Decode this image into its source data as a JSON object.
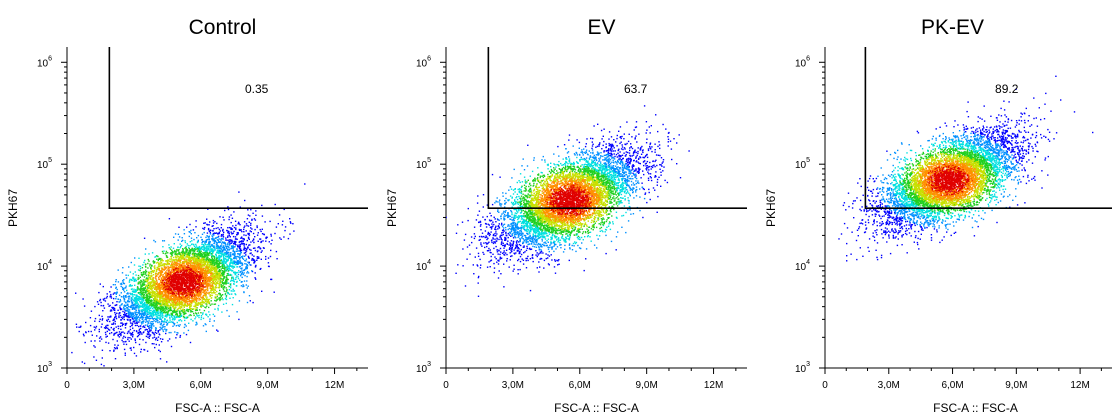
{
  "chart_data": [
    {
      "type": "scatter",
      "title": "Control",
      "xlabel": "FSC-A :: FSC-A",
      "ylabel": "PKH67",
      "x_ticks": [
        "0",
        "3,0M",
        "6,0M",
        "9,0M",
        "12M"
      ],
      "y_ticks": [
        {
          "base": "10",
          "exp": "3"
        },
        {
          "base": "10",
          "exp": "4"
        },
        {
          "base": "10",
          "exp": "5"
        },
        {
          "base": "10",
          "exp": "6"
        }
      ],
      "xlim": [
        0,
        13500000
      ],
      "ylim_log10": [
        3,
        6.15
      ],
      "y_scale": "log",
      "gate": {
        "x_min": 1900000,
        "y_min": 37000,
        "percent": "0.35"
      },
      "population": {
        "x_center": 5200000,
        "y_center_log10": 3.85,
        "x_sd": 1500000,
        "y_sd_log10": 0.24,
        "correlation": 0.65,
        "events_shown": 6500
      }
    },
    {
      "type": "scatter",
      "title": "EV",
      "xlabel": "FSC-A :: FSC-A",
      "ylabel": "PKH67",
      "x_ticks": [
        "0",
        "3,0M",
        "6,0M",
        "9,0M",
        "12M"
      ],
      "y_ticks": [
        {
          "base": "10",
          "exp": "3"
        },
        {
          "base": "10",
          "exp": "4"
        },
        {
          "base": "10",
          "exp": "5"
        },
        {
          "base": "10",
          "exp": "6"
        }
      ],
      "xlim": [
        0,
        13500000
      ],
      "ylim_log10": [
        3,
        6.15
      ],
      "y_scale": "log",
      "gate": {
        "x_min": 1900000,
        "y_min": 37000,
        "percent": "63.7"
      },
      "population": {
        "x_center": 5500000,
        "y_center_log10": 4.65,
        "x_sd": 1600000,
        "y_sd_log10": 0.25,
        "correlation": 0.65,
        "events_shown": 6500
      }
    },
    {
      "type": "scatter",
      "title": "PK-EV",
      "xlabel": "FSC-A :: FSC-A",
      "ylabel": "PKH67",
      "x_ticks": [
        "0",
        "3,0M",
        "6,0M",
        "9,0M",
        "12M"
      ],
      "y_ticks": [
        {
          "base": "10",
          "exp": "3"
        },
        {
          "base": "10",
          "exp": "4"
        },
        {
          "base": "10",
          "exp": "5"
        },
        {
          "base": "10",
          "exp": "6"
        }
      ],
      "xlim": [
        0,
        13500000
      ],
      "ylim_log10": [
        3,
        6.15
      ],
      "y_scale": "log",
      "gate": {
        "x_min": 1900000,
        "y_min": 37000,
        "percent": "89.2"
      },
      "population": {
        "x_center": 5800000,
        "y_center_log10": 4.85,
        "x_sd": 1600000,
        "y_sd_log10": 0.23,
        "correlation": 0.6,
        "events_shown": 6500
      }
    }
  ],
  "density_colormap": [
    "#0000ff",
    "#0090ff",
    "#00e0e0",
    "#20d020",
    "#c8e000",
    "#ff9000",
    "#e00000"
  ]
}
